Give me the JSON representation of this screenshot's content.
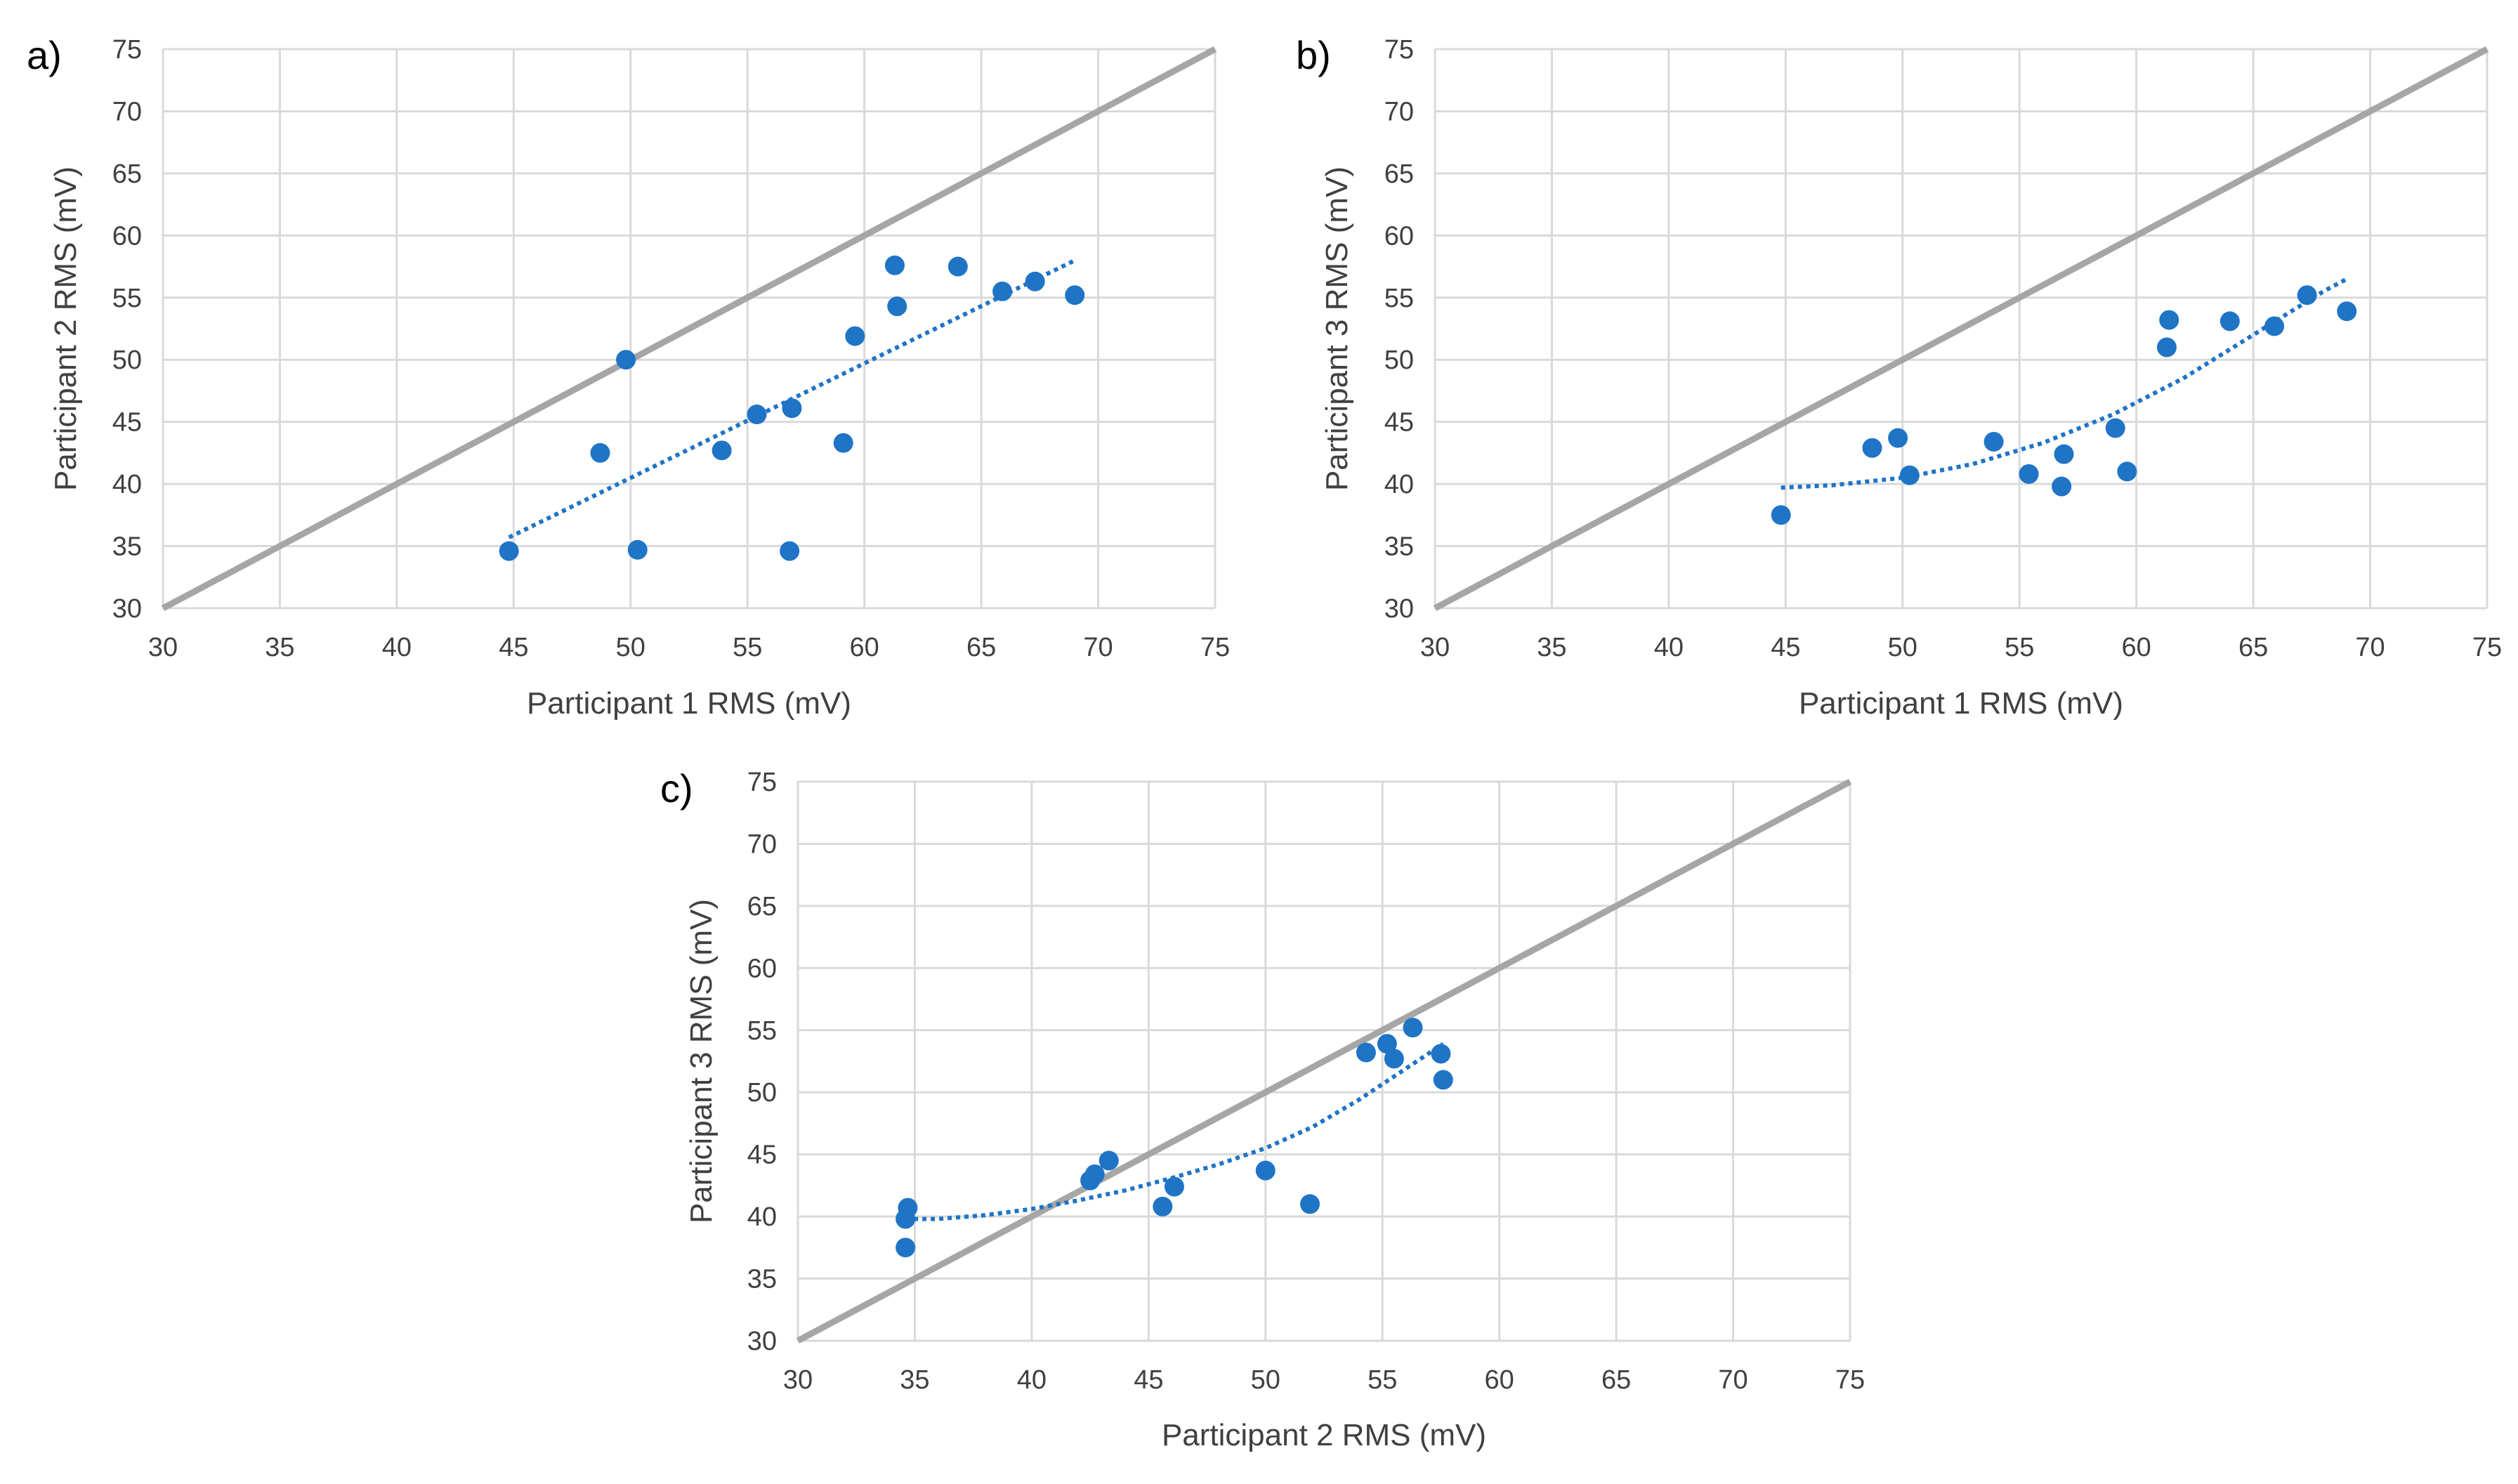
{
  "figure": {
    "background": "#ffffff"
  },
  "colors": {
    "points": "#1f74c6",
    "trendline": "#1f74c6",
    "identity": "#a6a6a6",
    "grid": "#d9d9d9"
  },
  "chart_data": [
    {
      "panel_label": "a)",
      "type": "scatter",
      "title": "",
      "xlabel": "Participant 1 RMS (mV)",
      "ylabel": "Participant 2 RMS (mV)",
      "xlim": [
        30,
        75
      ],
      "ylim": [
        30,
        75
      ],
      "xticks": [
        30,
        35,
        40,
        45,
        50,
        55,
        60,
        65,
        70,
        75
      ],
      "yticks": [
        30,
        35,
        40,
        45,
        50,
        55,
        60,
        65,
        70,
        75
      ],
      "grid": true,
      "identity_line": {
        "from": [
          30,
          30
        ],
        "to": [
          75,
          75
        ]
      },
      "trendline": {
        "type": "linear",
        "x": [
          44.8,
          69.0
        ],
        "y": [
          35.7,
          58.0
        ]
      },
      "points": [
        {
          "x": 44.8,
          "y": 34.6
        },
        {
          "x": 48.7,
          "y": 42.5
        },
        {
          "x": 49.8,
          "y": 50.0
        },
        {
          "x": 50.3,
          "y": 34.7
        },
        {
          "x": 53.9,
          "y": 42.7
        },
        {
          "x": 55.4,
          "y": 45.6
        },
        {
          "x": 56.8,
          "y": 34.6
        },
        {
          "x": 56.9,
          "y": 46.1
        },
        {
          "x": 59.1,
          "y": 43.3
        },
        {
          "x": 59.6,
          "y": 51.9
        },
        {
          "x": 61.3,
          "y": 57.6
        },
        {
          "x": 61.4,
          "y": 54.3
        },
        {
          "x": 64.0,
          "y": 57.5
        },
        {
          "x": 65.9,
          "y": 55.5
        },
        {
          "x": 67.3,
          "y": 56.3
        },
        {
          "x": 69.0,
          "y": 55.2
        }
      ]
    },
    {
      "panel_label": "b)",
      "type": "scatter",
      "title": "",
      "xlabel": "Participant 1 RMS (mV)",
      "ylabel": "Participant 3 RMS (mV)",
      "xlim": [
        30,
        75
      ],
      "ylim": [
        30,
        75
      ],
      "xticks": [
        30,
        35,
        40,
        45,
        50,
        55,
        60,
        65,
        70,
        75
      ],
      "yticks": [
        30,
        35,
        40,
        45,
        50,
        55,
        60,
        65,
        70,
        75
      ],
      "grid": true,
      "identity_line": {
        "from": [
          30,
          30
        ],
        "to": [
          75,
          75
        ]
      },
      "trendline": {
        "type": "polynomial",
        "x": [
          44.8,
          47,
          50,
          53,
          56,
          59,
          62,
          65,
          68,
          69.0
        ],
        "y": [
          39.7,
          39.9,
          40.5,
          41.6,
          43.3,
          45.6,
          48.5,
          52.0,
          55.5,
          56.5
        ]
      },
      "points": [
        {
          "x": 44.8,
          "y": 37.5
        },
        {
          "x": 48.7,
          "y": 42.9
        },
        {
          "x": 49.8,
          "y": 43.7
        },
        {
          "x": 50.3,
          "y": 40.7
        },
        {
          "x": 53.9,
          "y": 43.4
        },
        {
          "x": 55.4,
          "y": 40.8
        },
        {
          "x": 56.8,
          "y": 39.8
        },
        {
          "x": 56.9,
          "y": 42.4
        },
        {
          "x": 59.1,
          "y": 44.5
        },
        {
          "x": 59.6,
          "y": 41.0
        },
        {
          "x": 61.3,
          "y": 51.0
        },
        {
          "x": 61.4,
          "y": 53.2
        },
        {
          "x": 64.0,
          "y": 53.1
        },
        {
          "x": 65.9,
          "y": 52.7
        },
        {
          "x": 67.3,
          "y": 55.2
        },
        {
          "x": 69.0,
          "y": 53.9
        }
      ]
    },
    {
      "panel_label": "c)",
      "type": "scatter",
      "title": "",
      "xlabel": "Participant 2 RMS (mV)",
      "ylabel": "Participant 3 RMS (mV)",
      "xlim": [
        30,
        75
      ],
      "ylim": [
        30,
        75
      ],
      "xticks": [
        30,
        35,
        40,
        45,
        50,
        55,
        60,
        65,
        70,
        75
      ],
      "yticks": [
        30,
        35,
        40,
        45,
        50,
        55,
        60,
        65,
        70,
        75
      ],
      "grid": true,
      "identity_line": {
        "from": [
          30,
          30
        ],
        "to": [
          75,
          75
        ]
      },
      "trendline": {
        "type": "polynomial",
        "x": [
          34.6,
          36,
          38,
          40,
          42,
          44,
          46,
          48,
          50,
          52,
          54,
          56,
          57.6
        ],
        "y": [
          39.8,
          39.8,
          40.1,
          40.6,
          41.3,
          42.1,
          43.1,
          44.2,
          45.5,
          47.2,
          49.4,
          51.9,
          53.9
        ]
      },
      "points": [
        {
          "x": 34.6,
          "y": 37.5
        },
        {
          "x": 34.6,
          "y": 39.8
        },
        {
          "x": 34.7,
          "y": 40.7
        },
        {
          "x": 42.5,
          "y": 42.9
        },
        {
          "x": 42.7,
          "y": 43.4
        },
        {
          "x": 43.3,
          "y": 44.5
        },
        {
          "x": 45.6,
          "y": 40.8
        },
        {
          "x": 46.1,
          "y": 42.4
        },
        {
          "x": 50.0,
          "y": 43.7
        },
        {
          "x": 51.9,
          "y": 41.0
        },
        {
          "x": 54.3,
          "y": 53.2
        },
        {
          "x": 55.2,
          "y": 53.9
        },
        {
          "x": 55.5,
          "y": 52.7
        },
        {
          "x": 56.3,
          "y": 55.2
        },
        {
          "x": 57.5,
          "y": 53.1
        },
        {
          "x": 57.6,
          "y": 51.0
        }
      ]
    }
  ]
}
